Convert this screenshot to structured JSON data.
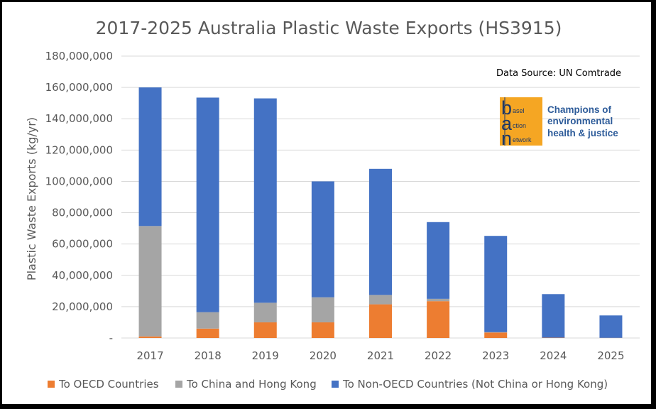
{
  "chart_data": {
    "type": "bar",
    "stacked": true,
    "title": "2017-2025 Australia Plastic Waste Exports (HS3915)",
    "ylabel": "Plastic Waste Exports (kg/yr)",
    "xlabel": "",
    "ylim": [
      0,
      180000000
    ],
    "y_ticks": [
      "-",
      "20,000,000",
      "40,000,000",
      "60,000,000",
      "80,000,000",
      "100,000,000",
      "120,000,000",
      "140,000,000",
      "160,000,000",
      "180,000,000"
    ],
    "grid": true,
    "legend_position": "bottom",
    "categories": [
      "2017",
      "2018",
      "2019",
      "2020",
      "2021",
      "2022",
      "2023",
      "2024",
      "2025"
    ],
    "series": [
      {
        "name": "To OECD Countries",
        "color": "#ed7d31",
        "values": [
          1000000,
          6000000,
          10000000,
          10000000,
          21500000,
          23500000,
          3500000,
          200000,
          100000
        ]
      },
      {
        "name": "To China and Hong Kong",
        "color": "#a5a5a5",
        "values": [
          70500000,
          10500000,
          12500000,
          16000000,
          6000000,
          1500000,
          200000,
          0,
          0
        ]
      },
      {
        "name": "To Non-OECD Countries (Not China or Hong Kong)",
        "color": "#4472c4",
        "values": [
          88500000,
          137000000,
          130500000,
          74000000,
          80500000,
          49000000,
          61500000,
          27800000,
          14300000
        ]
      }
    ]
  },
  "annotations": {
    "source": "Data Source: UN Comtrade"
  },
  "logo": {
    "letters": [
      "b",
      "a",
      "n"
    ],
    "words": [
      "asel",
      "ction",
      "etwork"
    ],
    "tagline": [
      "Champions of",
      "environmental",
      "health & justice"
    ],
    "bg_color": "#f5a623"
  }
}
